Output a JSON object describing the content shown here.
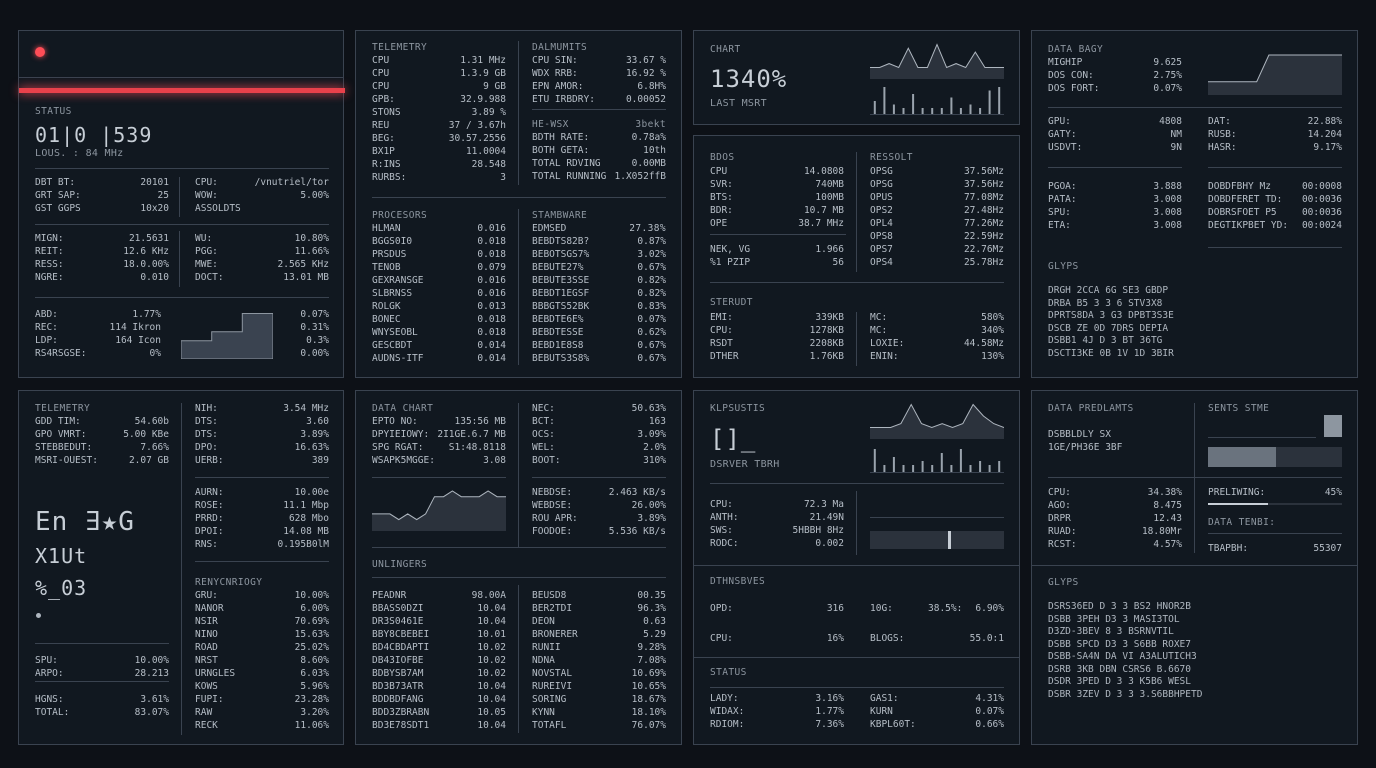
{
  "colors": {
    "accent": "#ff4d57",
    "bg": "#0d1117",
    "panel": "#111820",
    "border": "#3a4350",
    "text": "#b6bec7"
  },
  "p1": {
    "indicator_icon": "red-dot-icon",
    "status_label": "STATUS",
    "big_value": "01|0 |539",
    "sub_value": "LOUS. : 84 MHz",
    "left_rows": [
      [
        "DBT BT:",
        "20101"
      ],
      [
        "GRT SAP:",
        "25"
      ],
      [
        "GST GGPS",
        "10x20"
      ]
    ],
    "right_rows": [
      [
        "CPU:",
        "/vnutriel/tor"
      ],
      [
        "WOW:",
        "5.00%"
      ],
      [
        "ASSOLDTS",
        ""
      ]
    ],
    "mid_left": [
      [
        "MIGN:",
        "21.5631"
      ],
      [
        "REIT:",
        "12.6 KHz"
      ],
      [
        "RESS:",
        "18.0.00%"
      ],
      [
        "NGRE:",
        "0.010"
      ]
    ],
    "mid_right": [
      [
        "WU:",
        "10.80%"
      ],
      [
        "PGG:",
        "11.66%"
      ],
      [
        "MWE:",
        "2.565 KHz"
      ],
      [
        "DOCT:",
        "13.01 MB"
      ]
    ],
    "bot_left": [
      [
        "ABD:",
        "1.77%"
      ],
      [
        "REC:",
        "114 Ikron"
      ],
      [
        "LDP:",
        "164 Icon"
      ],
      [
        "RS4RSGSE:",
        "0%"
      ]
    ],
    "bot_right": [
      "0.07%",
      "0.31%",
      "0.3%",
      "0.00%"
    ],
    "chart_data": {
      "type": "area",
      "values": [
        2,
        2,
        2,
        3,
        3,
        3,
        5,
        5,
        5
      ]
    }
  },
  "p2": {
    "tele_label": "TELEMETRY",
    "tele_rows": [
      [
        "CPU",
        "1.31 MHz"
      ],
      [
        "CPU",
        "1.3.9 GB"
      ],
      [
        "CPU",
        "9 GB"
      ],
      [
        "GPB:",
        "32.9.988"
      ],
      [
        "STONS",
        "3.89 %"
      ],
      [
        "REU",
        "37 / 3.67h"
      ],
      [
        "BEG:",
        "30.57.2556"
      ],
      [
        "BX1P",
        "11.0004"
      ],
      [
        "R:INS",
        "28.548"
      ],
      [
        "RURBS:",
        "3"
      ]
    ],
    "dal_label": "DALMUMITS",
    "dal_rows": [
      [
        "CPU SIN:",
        "33.67 %"
      ],
      [
        "WDX RRB:",
        "16.92 %"
      ],
      [
        "EPN AMOR:",
        "6.8H%"
      ],
      [
        "ETU IRBDRY:",
        "0.00052"
      ]
    ],
    "he_label": "HE-WSX",
    "he_value": "3bekt",
    "he_rows": [
      [
        "BDTH RATE:",
        "0.78a%"
      ],
      [
        "BOTH GETA:",
        "10th"
      ],
      [
        "TOTAL RDVING",
        "0.00MB"
      ],
      [
        "TOTAL RUNNING",
        "1.X052ffB"
      ]
    ],
    "proc_label": "PROCESORS",
    "proc_rows": [
      [
        "HLMAN",
        "0.016"
      ],
      [
        "BGGS0I0",
        "0.018"
      ],
      [
        "PRSDUS",
        "0.018"
      ],
      [
        "TENOB",
        "0.079"
      ],
      [
        "GEXRANSGE",
        "0.016"
      ],
      [
        "SLBRNSS",
        "0.016"
      ],
      [
        "ROLGK",
        "0.013"
      ],
      [
        "BONEC",
        "0.018"
      ],
      [
        "WNYSEOBL",
        "0.018"
      ],
      [
        "GESCBDT",
        "0.014"
      ],
      [
        "AUDNS-ITF",
        "0.014"
      ]
    ],
    "stam_label": "STAMBWARE",
    "stam_value": "27.38%",
    "stam_rows": [
      [
        "EDMSED",
        ""
      ],
      [
        "BEBDTS82B?",
        "0.87%"
      ],
      [
        "BEBOTSGS7%",
        "3.02%"
      ],
      [
        "BEBUTE27%",
        "0.67%"
      ],
      [
        "BEBUTE3SSE",
        "0.82%"
      ],
      [
        "BEBDT1EGSF",
        "0.82%"
      ],
      [
        "BBBGTS52BK",
        "0.83%"
      ],
      [
        "BEBDTE6E%",
        "0.07%"
      ],
      [
        "BEBDTESSE",
        "0.62%"
      ],
      [
        "BEBD1E8S8",
        "0.67%"
      ],
      [
        "BEBUTS3S8%",
        "0.67%"
      ]
    ]
  },
  "p3": {
    "chart_label": "CHART",
    "big_value": "1340%",
    "sub_label": "LAST MSRT",
    "chart_data": {
      "type": "line",
      "values": [
        3,
        3,
        4,
        3,
        8,
        3,
        3,
        9,
        3,
        4,
        3,
        7,
        3,
        3,
        3
      ]
    },
    "bars_data": {
      "type": "bar",
      "values": [
        4,
        8,
        3,
        2,
        6,
        2,
        2,
        2,
        5,
        2,
        3,
        2,
        7,
        8
      ]
    }
  },
  "p4": {
    "bdos_label": "BDOS",
    "bdos_rows": [
      [
        "CPU",
        "14.0808"
      ],
      [
        "SVR:",
        "740MB"
      ],
      [
        "BTS:",
        "100MB"
      ],
      [
        "BDR:",
        "10.7 MB"
      ],
      [
        "OPE",
        "38.7 MHz"
      ]
    ],
    "res_label": "RESSOLT",
    "res_rows": [
      [
        "OPSG",
        "37.56Mz"
      ],
      [
        "OPSG",
        "37.56Hz"
      ],
      [
        "OPUS",
        "77.08Mz"
      ],
      [
        "OPS2",
        "27.48Hz"
      ],
      [
        "OPL4",
        "77.26Mz"
      ],
      [
        "OPS8",
        "22.59Hz"
      ],
      [
        "OPS7",
        "22.76Mz"
      ],
      [
        "OPS4",
        "25.78Hz"
      ]
    ],
    "nek_rows": [
      [
        "NEK, VG",
        "1.966"
      ],
      [
        "%1 PZIP",
        "56"
      ]
    ],
    "ster_label": "STERUDT",
    "ster_rows": [
      [
        "EMI:",
        "339KB"
      ],
      [
        "CPU:",
        "1278KB"
      ],
      [
        "RSDT",
        "2208KB"
      ],
      [
        "DTHER",
        "1.76KB"
      ]
    ],
    "mc_rows": [
      [
        "MC:",
        "580%"
      ],
      [
        "MC:",
        "340%"
      ],
      [
        "LOXIE:",
        "44.58Mz"
      ],
      [
        "ENIN:",
        "130%"
      ]
    ]
  },
  "p5": {
    "data_label": "DATA BAGY",
    "top_rows": [
      [
        "MIGHIP",
        "9.625"
      ],
      [
        "DOS CON:",
        "2.75%"
      ],
      [
        "DOS FORT:",
        "0.07%"
      ]
    ],
    "gpu_rows": [
      [
        "GPU:",
        "4808"
      ],
      [
        "GATY:",
        "NM"
      ],
      [
        "USDVT:",
        "9N"
      ]
    ],
    "dat_rows": [
      [
        "DAT:",
        "22.88%"
      ],
      [
        "RUSB:",
        "14.204"
      ],
      [
        "HASR:",
        "9.17%"
      ]
    ],
    "pgoa_rows": [
      [
        "PGOA:",
        "3.888"
      ],
      [
        "PATA:",
        "3.008"
      ],
      [
        "SPU:",
        "3.008"
      ],
      [
        "ETA:",
        "3.008"
      ]
    ],
    "dec_rows": [
      [
        "DOBDFBHY Mz",
        "00:0008"
      ],
      [
        "DOBDFERET TD:",
        "00:0036"
      ],
      [
        "DOBRSFOET P5",
        "00:0036"
      ],
      [
        "DEGTIKPBET YD:",
        "00:0024"
      ]
    ],
    "glyphs_label": "GLYPS",
    "glyphs": [
      "DRGH 2CCA 6G SE3 GBDP",
      "DRBA B5 3 3 6 STV3X8",
      "DPRTS8DA 3 G3 DPBT3S3E",
      "DSCB ZE 0D 7DRS DEPIA",
      "DSBB1 4J D 3 BT 36TG",
      "DSCTI3KE 0B 1V 1D 3BIR"
    ],
    "chart_data": {
      "type": "line",
      "values": [
        1,
        1,
        1,
        1,
        1,
        3,
        3,
        3,
        3,
        3,
        3,
        3
      ]
    }
  },
  "p6": {
    "tele_label": "TELEMETRY",
    "tele_rows": [
      [
        "GDD TIM:",
        "54.60b"
      ],
      [
        "GPO VMRT:",
        "5.00 KBe"
      ],
      [
        "STEBBEDUT:",
        "7.66%"
      ],
      [
        "MSRI-OUEST:",
        "2.07 GB"
      ]
    ],
    "right_top": [
      [
        "NIH:",
        "3.54 MHz"
      ],
      [
        "DTS:",
        "3.60"
      ],
      [
        "DTS:",
        "3.89%"
      ],
      [
        "DPO:",
        "16.63%"
      ],
      [
        "UERB:",
        "389"
      ]
    ],
    "big1": "En ∃★G",
    "big2": "X1Ut",
    "big3": "%_03",
    "right_mid": [
      [
        "AURN:",
        "10.00e"
      ],
      [
        "ROSE:",
        "11.1 Mbp"
      ],
      [
        "PRRD:",
        "628 Mbo"
      ],
      [
        "DPOI:",
        "14.08 MB"
      ],
      [
        "RNS:",
        "0.195B0lM"
      ]
    ],
    "reny_label": "RENYCNRIOGY",
    "reny_rows": [
      [
        "GRU:",
        "10.00%"
      ],
      [
        "NANOR",
        "6.00%"
      ],
      [
        "NSIR",
        "70.69%"
      ],
      [
        "NINO",
        "15.63%"
      ],
      [
        "ROAD",
        "25.02%"
      ],
      [
        "NRST",
        "8.60%"
      ],
      [
        "URNGLES",
        "6.03%"
      ],
      [
        "KOWS",
        "5.96%"
      ],
      [
        "FUPI:",
        "23.28%"
      ],
      [
        "RAW",
        "3.20%"
      ],
      [
        "RECK",
        "11.06%"
      ]
    ],
    "bottom_rows": [
      [
        "SPU:",
        "10.00%"
      ],
      [
        "ARPO:",
        "28.213"
      ]
    ],
    "last_rows": [
      [
        "HGNS:",
        "3.61%"
      ],
      [
        "TOTAL:",
        "83.07%"
      ]
    ]
  },
  "p7": {
    "dc_label": "DATA CHART",
    "dc_rows": [
      [
        "EPTO NO:",
        "135:56 MB"
      ],
      [
        "DPYIEIOWY:",
        "2I1GE.6.7 MB"
      ],
      [
        "SPG RGAT:",
        "S1:48.8118"
      ],
      [
        "WSAPK5MGGE:",
        "3.08"
      ]
    ],
    "nec_rows": [
      [
        "NEC:",
        "50.63%"
      ],
      [
        "BCT:",
        "163"
      ],
      [
        "OCS:",
        "3.09%"
      ],
      [
        "WEL:",
        "2.0%"
      ],
      [
        "BOOT:",
        "310%"
      ]
    ],
    "neb_rows": [
      [
        "NEBDSE:",
        "2.463 KB/s"
      ],
      [
        "WEBDSE:",
        "26.00%"
      ],
      [
        "ROU APR:",
        "3.89%"
      ],
      [
        "FOODOE:",
        "5.536 KB/s"
      ]
    ],
    "unl_label": "UNLINGERS",
    "unl_left": [
      [
        "PEADNR",
        "98.00A"
      ],
      [
        "BBASS0DZI",
        "10.04"
      ],
      [
        "DR3S0461E",
        "10.04"
      ],
      [
        "BBY8CBEBEI",
        "10.01"
      ],
      [
        "BD4CBDAPTI",
        "10.02"
      ],
      [
        "DB43IOFBE",
        "10.02"
      ],
      [
        "BDBYSB7AM",
        "10.02"
      ],
      [
        "BD3B73ATR",
        "10.04"
      ],
      [
        "BDDBDFANG",
        "10.04"
      ],
      [
        "BDD3ZBRABN",
        "10.05"
      ],
      [
        "BD3E78SDT1",
        "10.04"
      ]
    ],
    "unl_right": [
      [
        "BEUSD8",
        "00.35"
      ],
      [
        "BER2TDI",
        "96.3%"
      ],
      [
        "DEON",
        "0.63"
      ],
      [
        "BRONERER",
        "5.29"
      ],
      [
        "RUNII",
        "9.28%"
      ],
      [
        "NDNA",
        "7.08%"
      ],
      [
        "NOVSTAL",
        "10.69%"
      ],
      [
        "RUREIVI",
        "10.65%"
      ],
      [
        "SORING",
        "18.67%"
      ],
      [
        "KYNN",
        "18.10%"
      ],
      [
        "TOTAFL",
        "76.07%"
      ]
    ],
    "chart_data": {
      "type": "area",
      "values": [
        3,
        3,
        3,
        2,
        3,
        2,
        3,
        6,
        6,
        7,
        6,
        6,
        6,
        7,
        6,
        6
      ]
    }
  },
  "p8": {
    "kl_label": "KLPSUSTIS",
    "big_value": "[]_",
    "sub_label": "DSRVER TBRH",
    "rows": [
      [
        "CPU:",
        "72.3 Ma"
      ],
      [
        "ANTH:",
        "21.49N"
      ],
      [
        "SWS:",
        "5HBBH 8Hz"
      ],
      [
        "RODC:",
        "0.002"
      ]
    ],
    "dh_label": "DTHNSBVES",
    "dh_rows": [
      [
        "OPD:",
        "316"
      ],
      [
        "CPU:",
        "16%"
      ]
    ],
    "dh_right": [
      [
        "10G:",
        "38.5%:",
        "6.90%"
      ],
      [
        "BLOGS:",
        "",
        "55.0:1"
      ]
    ],
    "status_label": "STATUS",
    "status_left": [
      [
        "LADY:",
        "3.16%"
      ],
      [
        "WIDAX:",
        "1.77%"
      ],
      [
        "RDIOM:",
        "7.36%"
      ]
    ],
    "status_right": [
      [
        "GAS1:",
        "4.31%"
      ],
      [
        "KURN",
        "0.07%"
      ],
      [
        "KBPL60T:",
        "0.66%"
      ]
    ],
    "chart_data": {
      "type": "line",
      "values": [
        3,
        3,
        3,
        4,
        9,
        4,
        3,
        4,
        3,
        4,
        9,
        6,
        4,
        3
      ]
    },
    "bars_data": {
      "type": "bar",
      "values": [
        6,
        2,
        4,
        2,
        2,
        3,
        2,
        5,
        2,
        6,
        2,
        3,
        2,
        3
      ]
    }
  },
  "p9": {
    "dp_label": "DATA PREDLAMTS",
    "dp_rows": [
      [
        "DSBBLDLY SX",
        ""
      ],
      [
        "1GE/PH36E 3BF",
        ""
      ]
    ],
    "st_label": "SENTS STME",
    "rows": [
      [
        "CPU:",
        "34.38%"
      ],
      [
        "AGO:",
        "8.475"
      ],
      [
        "DRPR",
        "12.43"
      ],
      [
        "RUAD:",
        "18.80Mr"
      ],
      [
        "RCST:",
        "4.57%"
      ]
    ],
    "prel_label": "PRELIWING:",
    "prel_value": "45%",
    "prel_progress": 0.45,
    "data_teng": "DATA TENBI:",
    "tbr_rows": [
      [
        "TBAPBH:",
        "55307"
      ]
    ],
    "glyphs_label": "GLYPS",
    "glyphs": [
      "DSRS36ED D 3 3 BS2 HNOR2B",
      "DSBB 3PEH D3 3 MASI3TOL",
      "D3ZD-3BEV 8 3 BSRNVTIL",
      "DSBB SPCD D3 3 S6BB ROXE7",
      "DSBB-SA4N DA VI A3ALUTICH3",
      "DSRB 3KB DBN CSRS6 B.6670",
      "DSDR 3PED D 3 3 K5B6 WESL",
      "DSBR 3ZEV D 3 3 3.S6BBHPETD"
    ]
  }
}
